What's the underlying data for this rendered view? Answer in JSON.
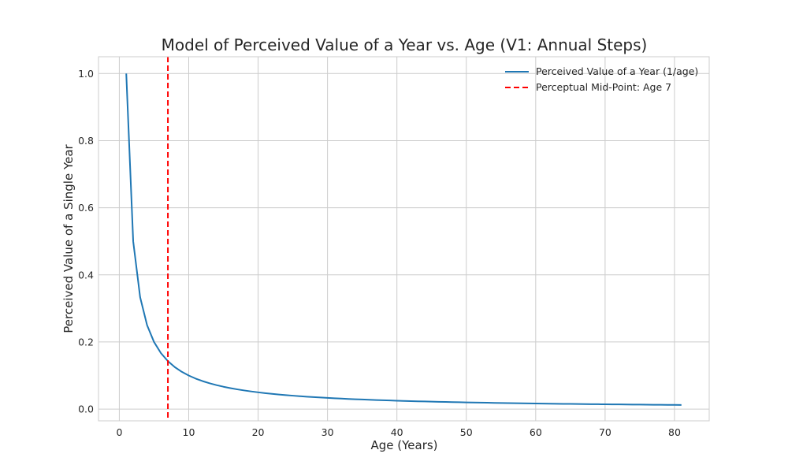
{
  "chart_data": {
    "type": "line",
    "title": "Model of Perceived Value of a Year vs. Age (V1: Annual Steps)",
    "xlabel": "Age (Years)",
    "ylabel": "Perceived Value of a Single Year",
    "xlim": [
      -3,
      85
    ],
    "ylim": [
      -0.035,
      1.05
    ],
    "xticks": [
      0,
      10,
      20,
      30,
      40,
      50,
      60,
      70,
      80
    ],
    "yticks": [
      0.0,
      0.2,
      0.4,
      0.6,
      0.8,
      1.0
    ],
    "xtick_labels": [
      "0",
      "10",
      "20",
      "30",
      "40",
      "50",
      "60",
      "70",
      "80"
    ],
    "ytick_labels": [
      "0.0",
      "0.2",
      "0.4",
      "0.6",
      "0.8",
      "1.0"
    ],
    "grid": true,
    "legend_position": "top-right",
    "series": [
      {
        "name": "Perceived Value of a Year (1/age)",
        "color": "#1f77b4",
        "style": "solid",
        "x_start": 1,
        "x_end": 81,
        "formula": "1/age"
      }
    ],
    "reference_lines": [
      {
        "name": "Perceptual Mid-Point: Age 7",
        "orientation": "vertical",
        "x": 7,
        "color": "#ff0000",
        "style": "dashed"
      }
    ]
  }
}
